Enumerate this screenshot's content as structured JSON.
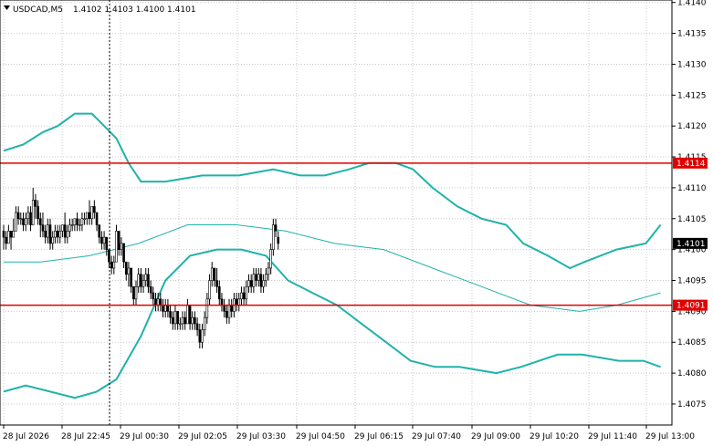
{
  "chart_data": {
    "type": "candlestick",
    "title": {
      "symbol": "USDCAD,M5",
      "ohlc": "1.4102 1.4103 1.4100 1.4101"
    },
    "ylim": [
      1.40716,
      1.41404
    ],
    "y_ticks": [
      "1.4140",
      "1.4135",
      "1.4130",
      "1.4125",
      "1.4120",
      "1.4115",
      "1.4110",
      "1.4105",
      "1.4100",
      "1.4095",
      "1.4090",
      "1.4085",
      "1.4080",
      "1.4075"
    ],
    "x_ticks": [
      "28 Jul 2026",
      "28 Jul 22:45",
      "29 Jul 00:30",
      "29 Jul 02:05",
      "29 Jul 03:30",
      "29 Jul 04:50",
      "29 Jul 06:15",
      "29 Jul 07:40",
      "29 Jul 09:00",
      "29 Jul 10:20",
      "29 Jul 11:40",
      "29 Jul 13:00"
    ],
    "period_separator_at": "28 Jul 22:45",
    "horizontal_levels": [
      {
        "value": 1.4114,
        "label": "1.4114"
      },
      {
        "value": 1.4091,
        "label": "1.4091"
      }
    ],
    "current_price": {
      "value": 1.4101,
      "label": "1.4101"
    },
    "grid": true,
    "colors": {
      "background": "#ffffff",
      "grid": "#c8c8c8",
      "candles": "#000000",
      "bands": "#20b2aa",
      "level_line": "#e00000",
      "separator": "#000000"
    },
    "candles": [
      [
        1.4103,
        1.4104,
        1.41,
        1.4102
      ],
      [
        1.4102,
        1.4103,
        1.41,
        1.4101
      ],
      [
        1.4101,
        1.4104,
        1.4101,
        1.4103
      ],
      [
        1.4103,
        1.4103,
        1.41,
        1.4102
      ],
      [
        1.4102,
        1.4105,
        1.4102,
        1.4103
      ],
      [
        1.4103,
        1.4107,
        1.4103,
        1.4106
      ],
      [
        1.4106,
        1.4107,
        1.4104,
        1.4105
      ],
      [
        1.4105,
        1.4106,
        1.4104,
        1.4105
      ],
      [
        1.4105,
        1.4106,
        1.4103,
        1.4104
      ],
      [
        1.4104,
        1.4106,
        1.4103,
        1.4105
      ],
      [
        1.4105,
        1.4107,
        1.4104,
        1.4106
      ],
      [
        1.4106,
        1.4107,
        1.4103,
        1.4104
      ],
      [
        1.4104,
        1.411,
        1.4104,
        1.4108
      ],
      [
        1.4108,
        1.4109,
        1.4105,
        1.4107
      ],
      [
        1.4107,
        1.4108,
        1.4104,
        1.4105
      ],
      [
        1.4105,
        1.4106,
        1.4102,
        1.4104
      ],
      [
        1.4104,
        1.4106,
        1.4102,
        1.4103
      ],
      [
        1.4103,
        1.4104,
        1.4101,
        1.4102
      ],
      [
        1.4102,
        1.4105,
        1.4101,
        1.4104
      ],
      [
        1.4104,
        1.4105,
        1.41,
        1.4101
      ],
      [
        1.4101,
        1.4103,
        1.41,
        1.4102
      ],
      [
        1.4102,
        1.4104,
        1.4101,
        1.4103
      ],
      [
        1.4103,
        1.4104,
        1.4101,
        1.4102
      ],
      [
        1.4102,
        1.4104,
        1.4101,
        1.4103
      ],
      [
        1.4103,
        1.4104,
        1.4102,
        1.4104
      ],
      [
        1.4104,
        1.4106,
        1.4101,
        1.4102
      ],
      [
        1.4102,
        1.4104,
        1.4101,
        1.4103
      ],
      [
        1.4103,
        1.4105,
        1.4102,
        1.4104
      ],
      [
        1.4104,
        1.4105,
        1.4103,
        1.4104
      ],
      [
        1.4104,
        1.4105,
        1.4103,
        1.4105
      ],
      [
        1.4105,
        1.4106,
        1.4103,
        1.4104
      ],
      [
        1.4104,
        1.4105,
        1.4103,
        1.4104
      ],
      [
        1.4104,
        1.4106,
        1.4103,
        1.4105
      ],
      [
        1.4105,
        1.4106,
        1.4104,
        1.4105
      ],
      [
        1.4105,
        1.4106,
        1.4104,
        1.4106
      ],
      [
        1.4106,
        1.4108,
        1.4104,
        1.4105
      ],
      [
        1.4105,
        1.4107,
        1.4104,
        1.4107
      ],
      [
        1.4107,
        1.4108,
        1.4105,
        1.4106
      ],
      [
        1.4106,
        1.4106,
        1.4103,
        1.4104
      ],
      [
        1.4104,
        1.4104,
        1.4101,
        1.4102
      ],
      [
        1.4102,
        1.4103,
        1.41,
        1.4101
      ],
      [
        1.4101,
        1.4103,
        1.41,
        1.4102
      ],
      [
        1.4102,
        1.4102,
        1.4099,
        1.41
      ],
      [
        1.41,
        1.41,
        1.4097,
        1.4098
      ],
      [
        1.4098,
        1.4099,
        1.4096,
        1.4097
      ],
      [
        1.4097,
        1.4099,
        1.4096,
        1.4098
      ],
      [
        1.4098,
        1.4104,
        1.4098,
        1.4103
      ],
      [
        1.4103,
        1.4103,
        1.4099,
        1.41
      ],
      [
        1.41,
        1.4102,
        1.4099,
        1.4101
      ],
      [
        1.4101,
        1.4101,
        1.4097,
        1.4098
      ],
      [
        1.4098,
        1.4098,
        1.4095,
        1.4096
      ],
      [
        1.4096,
        1.4098,
        1.4094,
        1.4097
      ],
      [
        1.4097,
        1.4097,
        1.4093,
        1.4094
      ],
      [
        1.4094,
        1.4094,
        1.4091,
        1.4092
      ],
      [
        1.4092,
        1.4095,
        1.4091,
        1.4094
      ],
      [
        1.4094,
        1.4097,
        1.4093,
        1.4096
      ],
      [
        1.4096,
        1.4097,
        1.4093,
        1.4094
      ],
      [
        1.4094,
        1.4096,
        1.4093,
        1.4095
      ],
      [
        1.4095,
        1.4097,
        1.4094,
        1.4096
      ],
      [
        1.4096,
        1.4097,
        1.4093,
        1.4094
      ],
      [
        1.4094,
        1.4095,
        1.4092,
        1.4093
      ],
      [
        1.4093,
        1.4094,
        1.4091,
        1.4092
      ],
      [
        1.4092,
        1.4093,
        1.409,
        1.4091
      ],
      [
        1.4091,
        1.4093,
        1.409,
        1.4092
      ],
      [
        1.4092,
        1.4093,
        1.409,
        1.4091
      ],
      [
        1.4091,
        1.4092,
        1.4089,
        1.409
      ],
      [
        1.409,
        1.4092,
        1.4089,
        1.4091
      ],
      [
        1.4091,
        1.4092,
        1.4089,
        1.409
      ],
      [
        1.409,
        1.4091,
        1.4088,
        1.4089
      ],
      [
        1.4089,
        1.409,
        1.4087,
        1.4088
      ],
      [
        1.4088,
        1.4091,
        1.4087,
        1.409
      ],
      [
        1.409,
        1.409,
        1.4087,
        1.4088
      ],
      [
        1.4088,
        1.4089,
        1.4087,
        1.4088
      ],
      [
        1.4088,
        1.409,
        1.4087,
        1.4089
      ],
      [
        1.4089,
        1.409,
        1.4087,
        1.4088
      ],
      [
        1.4088,
        1.4092,
        1.4088,
        1.4091
      ],
      [
        1.4091,
        1.4091,
        1.4087,
        1.4088
      ],
      [
        1.4088,
        1.409,
        1.4087,
        1.4089
      ],
      [
        1.4089,
        1.409,
        1.4087,
        1.4088
      ],
      [
        1.4088,
        1.4089,
        1.4086,
        1.4087
      ],
      [
        1.4087,
        1.4088,
        1.4084,
        1.4085
      ],
      [
        1.4085,
        1.4088,
        1.4084,
        1.4087
      ],
      [
        1.4087,
        1.409,
        1.4086,
        1.4089
      ],
      [
        1.4089,
        1.4093,
        1.4088,
        1.4092
      ],
      [
        1.4092,
        1.4096,
        1.4091,
        1.4095
      ],
      [
        1.4095,
        1.4098,
        1.4094,
        1.4097
      ],
      [
        1.4097,
        1.4097,
        1.4094,
        1.4095
      ],
      [
        1.4095,
        1.4097,
        1.4093,
        1.4094
      ],
      [
        1.4094,
        1.4095,
        1.4091,
        1.4092
      ],
      [
        1.4092,
        1.4093,
        1.409,
        1.4091
      ],
      [
        1.4091,
        1.4092,
        1.4089,
        1.409
      ],
      [
        1.409,
        1.4091,
        1.4088,
        1.4089
      ],
      [
        1.4089,
        1.4092,
        1.4088,
        1.4091
      ],
      [
        1.4091,
        1.4092,
        1.4089,
        1.409
      ],
      [
        1.409,
        1.4093,
        1.4089,
        1.4092
      ],
      [
        1.4092,
        1.4093,
        1.409,
        1.4091
      ],
      [
        1.4091,
        1.4093,
        1.409,
        1.4092
      ],
      [
        1.4092,
        1.4094,
        1.4091,
        1.4093
      ],
      [
        1.4093,
        1.4094,
        1.4091,
        1.4092
      ],
      [
        1.4092,
        1.4095,
        1.4091,
        1.4094
      ],
      [
        1.4094,
        1.4096,
        1.4093,
        1.4095
      ],
      [
        1.4095,
        1.4096,
        1.4093,
        1.4094
      ],
      [
        1.4094,
        1.4097,
        1.4093,
        1.4096
      ],
      [
        1.4096,
        1.4097,
        1.4094,
        1.4095
      ],
      [
        1.4095,
        1.4097,
        1.4094,
        1.4096
      ],
      [
        1.4096,
        1.4097,
        1.4093,
        1.4094
      ],
      [
        1.4094,
        1.4096,
        1.4093,
        1.4095
      ],
      [
        1.4095,
        1.4097,
        1.4094,
        1.4096
      ],
      [
        1.4096,
        1.4098,
        1.4095,
        1.4097
      ],
      [
        1.4097,
        1.4101,
        1.4096,
        1.41
      ],
      [
        1.41,
        1.4105,
        1.4099,
        1.4104
      ],
      [
        1.4104,
        1.4105,
        1.4102,
        1.4103
      ],
      [
        1.4102,
        1.4103,
        1.41,
        1.4101
      ]
    ],
    "bands_upper": [
      [
        0,
        1.4116
      ],
      [
        8,
        1.4117
      ],
      [
        16,
        1.4119
      ],
      [
        22,
        1.412
      ],
      [
        29,
        1.4122
      ],
      [
        36,
        1.4122
      ],
      [
        46,
        1.4118
      ],
      [
        51,
        1.4114
      ],
      [
        56,
        1.4111
      ],
      [
        66,
        1.4111
      ],
      [
        81,
        1.4112
      ],
      [
        96,
        1.4112
      ],
      [
        110,
        1.4113
      ],
      [
        121,
        1.4112
      ],
      [
        131,
        1.4112
      ],
      [
        141,
        1.4113
      ],
      [
        149,
        1.4114
      ],
      [
        160,
        1.4114
      ],
      [
        167,
        1.4113
      ],
      [
        175,
        1.411
      ],
      [
        185,
        1.4107
      ],
      [
        195,
        1.4105
      ],
      [
        205,
        1.4104
      ],
      [
        212,
        1.4101
      ],
      [
        222,
        1.4099
      ],
      [
        231,
        1.4097
      ],
      [
        237,
        1.4098
      ],
      [
        250,
        1.41
      ],
      [
        262,
        1.4101
      ],
      [
        268,
        1.4104
      ]
    ],
    "bands_middle": [
      [
        0,
        1.4098
      ],
      [
        15,
        1.4098
      ],
      [
        35,
        1.4099
      ],
      [
        55,
        1.4101
      ],
      [
        75,
        1.4104
      ],
      [
        95,
        1.4104
      ],
      [
        115,
        1.4103
      ],
      [
        135,
        1.4101
      ],
      [
        155,
        1.41
      ],
      [
        175,
        1.4097
      ],
      [
        195,
        1.4094
      ],
      [
        215,
        1.4091
      ],
      [
        235,
        1.409
      ],
      [
        250,
        1.4091
      ],
      [
        268,
        1.4093
      ]
    ],
    "bands_lower": [
      [
        0,
        1.4077
      ],
      [
        9,
        1.4078
      ],
      [
        19,
        1.4077
      ],
      [
        29,
        1.4076
      ],
      [
        38,
        1.4077
      ],
      [
        46,
        1.4079
      ],
      [
        56,
        1.4086
      ],
      [
        66,
        1.4095
      ],
      [
        76,
        1.4099
      ],
      [
        87,
        1.41
      ],
      [
        97,
        1.41
      ],
      [
        107,
        1.4099
      ],
      [
        116,
        1.4095
      ],
      [
        126,
        1.4093
      ],
      [
        136,
        1.4091
      ],
      [
        146,
        1.4088
      ],
      [
        156,
        1.4085
      ],
      [
        166,
        1.4082
      ],
      [
        176,
        1.4081
      ],
      [
        186,
        1.4081
      ],
      [
        201,
        1.408
      ],
      [
        211,
        1.4081
      ],
      [
        226,
        1.4083
      ],
      [
        236,
        1.4083
      ],
      [
        251,
        1.4082
      ],
      [
        261,
        1.4082
      ],
      [
        268,
        1.4081
      ]
    ]
  }
}
